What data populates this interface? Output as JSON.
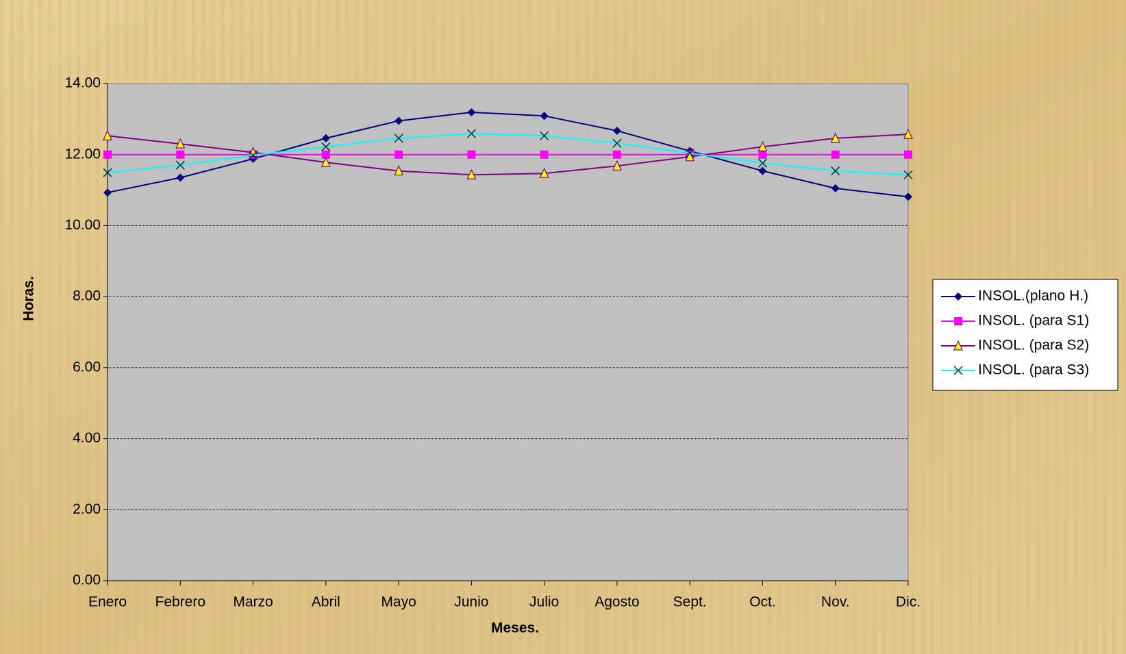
{
  "chart_data": {
    "type": "line",
    "x_label": "Meses.",
    "y_label": "Horas.",
    "categories": [
      "Enero",
      "Febrero",
      "Marzo",
      "Abril",
      "Mayo",
      "Junio",
      "Julio",
      "Agosto",
      "Sept.",
      "Oct.",
      "Nov.",
      "Dic."
    ],
    "series": [
      {
        "name": "INSOL.(plano H.)",
        "color": "#000080",
        "marker": "diamond",
        "values": [
          10.93,
          11.35,
          11.88,
          12.46,
          12.95,
          13.19,
          13.09,
          12.67,
          12.1,
          11.54,
          11.05,
          10.81
        ]
      },
      {
        "name": "INSOL. (para S1)",
        "color": "#ff00ff",
        "marker": "square",
        "values": [
          12,
          12,
          12,
          12,
          12,
          12,
          12,
          12,
          12,
          12,
          12,
          12
        ]
      },
      {
        "name": "INSOL. (para S2)",
        "color": "#800080",
        "marker": "triangle",
        "values": [
          12.53,
          12.3,
          12.06,
          11.78,
          11.54,
          11.43,
          11.47,
          11.68,
          11.94,
          12.22,
          12.46,
          12.57
        ]
      },
      {
        "name": "INSOL. (para S3)",
        "color": "#00ffff",
        "marker": "x",
        "values": [
          11.49,
          11.7,
          11.98,
          12.22,
          12.46,
          12.59,
          12.53,
          12.32,
          12.04,
          11.76,
          11.54,
          11.43
        ]
      }
    ],
    "ylim": [
      0,
      14
    ],
    "yticks": [
      {
        "value": 0,
        "label": "0.00"
      },
      {
        "value": 2,
        "label": "2.00"
      },
      {
        "value": 4,
        "label": "4.00"
      },
      {
        "value": 6,
        "label": "6.00"
      },
      {
        "value": 8,
        "label": "8.00"
      },
      {
        "value": 10,
        "label": "10.00"
      },
      {
        "value": 12,
        "label": "12.00"
      },
      {
        "value": 14,
        "label": "14.00"
      }
    ],
    "grid": true,
    "legend": "right",
    "plot_background": "#c0c0c0"
  }
}
